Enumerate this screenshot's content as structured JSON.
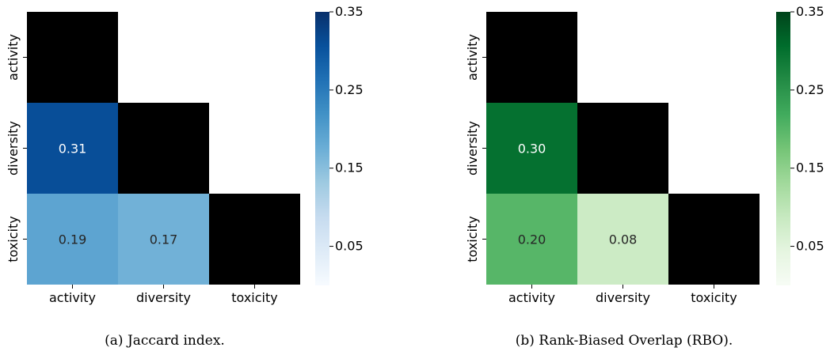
{
  "chart_data": [
    {
      "type": "heatmap",
      "caption": "(a) Jaccard index.",
      "rows": [
        "activity",
        "diversity",
        "toxicity"
      ],
      "cols": [
        "activity",
        "diversity",
        "toxicity"
      ],
      "values": [
        [
          null,
          null,
          null
        ],
        [
          0.31,
          null,
          null
        ],
        [
          0.19,
          0.17,
          null
        ]
      ],
      "labels": [
        [
          "",
          "",
          ""
        ],
        [
          "0.31",
          "",
          ""
        ],
        [
          "0.19",
          "0.17",
          ""
        ]
      ],
      "masked_color": "#000000",
      "colormap": "Blues",
      "color_stops": [
        "#f7fbff",
        "#deebf7",
        "#c6dbef",
        "#9ecae1",
        "#6baed6",
        "#4292c6",
        "#2171b5",
        "#08519c",
        "#08306b"
      ],
      "vmin": 0,
      "vmax": 0.35,
      "colorbar_ticks": [
        "0.05",
        "0.15",
        "0.25",
        "0.35"
      ]
    },
    {
      "type": "heatmap",
      "caption": "(b) Rank-Biased Overlap (RBO).",
      "rows": [
        "activity",
        "diversity",
        "toxicity"
      ],
      "cols": [
        "activity",
        "diversity",
        "toxicity"
      ],
      "values": [
        [
          null,
          null,
          null
        ],
        [
          0.3,
          null,
          null
        ],
        [
          0.2,
          0.08,
          null
        ]
      ],
      "labels": [
        [
          "",
          "",
          ""
        ],
        [
          "0.30",
          "",
          ""
        ],
        [
          "0.20",
          "0.08",
          ""
        ]
      ],
      "masked_color": "#000000",
      "colormap": "Greens",
      "color_stops": [
        "#f7fcf5",
        "#e5f5e0",
        "#c7e9c0",
        "#a1d99b",
        "#74c476",
        "#41ab5d",
        "#238b45",
        "#006d2c",
        "#00441b"
      ],
      "vmin": 0,
      "vmax": 0.35,
      "colorbar_ticks": [
        "0.05",
        "0.15",
        "0.25",
        "0.35"
      ]
    }
  ]
}
